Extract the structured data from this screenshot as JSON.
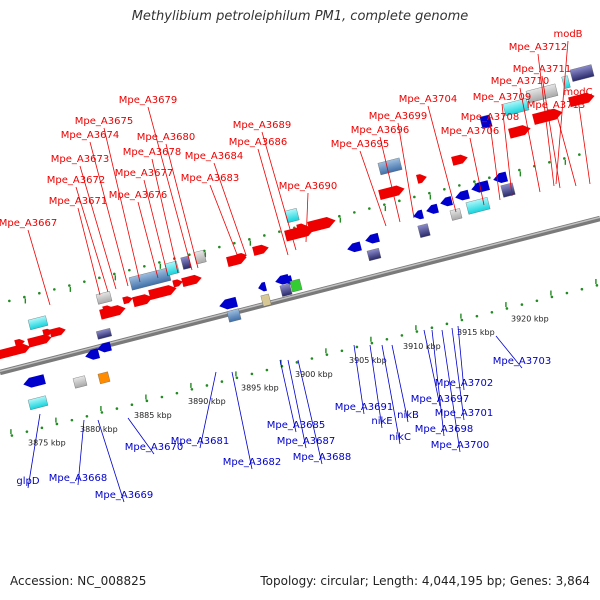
{
  "title": "Methylibium petroleiphilum PM1, complete genome",
  "accession": "Accession: NC_008825",
  "summary": "Topology: circular; Length: 4,044,195 bp; Genes: 3,864",
  "colors": {
    "forward_gene": "#ee0000",
    "reverse_gene": "#0000cc",
    "backbone": "#888888",
    "tick": "#228b22",
    "scale_text": "#222222"
  },
  "scale_ticks": [
    "3875 kbp",
    "3880 kbp",
    "3885 kbp",
    "3890 kbp",
    "3895 kbp",
    "3900 kbp",
    "3905 kbp",
    "3910 kbp",
    "3915 kbp",
    "3920 kbp"
  ],
  "top_labels": [
    "Mpe_A3667",
    "Mpe_A3671",
    "Mpe_A3672",
    "Mpe_A3673",
    "Mpe_A3674",
    "Mpe_A3675",
    "Mpe_A3676",
    "Mpe_A3677",
    "Mpe_A3678",
    "Mpe_A3679",
    "Mpe_A3680",
    "Mpe_A3683",
    "Mpe_A3684",
    "Mpe_A3686",
    "Mpe_A3689",
    "Mpe_A3690",
    "Mpe_A3695",
    "Mpe_A3696",
    "Mpe_A3699",
    "Mpe_A3704",
    "Mpe_A3706",
    "Mpe_A3708",
    "Mpe_A3709",
    "Mpe_A3710",
    "Mpe_A3711",
    "Mpe_A3712",
    "Mpe_A3713",
    "modB",
    "modC"
  ],
  "bottom_labels": [
    "glpD",
    "Mpe_A3668",
    "Mpe_A3669",
    "Mpe_A3670",
    "Mpe_A3681",
    "Mpe_A3682",
    "Mpe_A3685",
    "Mpe_A3687",
    "Mpe_A3688",
    "Mpe_A3691",
    "nikE",
    "nikC",
    "nikB",
    "Mpe_A3697",
    "Mpe_A3698",
    "Mpe_A3700",
    "Mpe_A3701",
    "Mpe_A3702",
    "Mpe_A3703"
  ]
}
